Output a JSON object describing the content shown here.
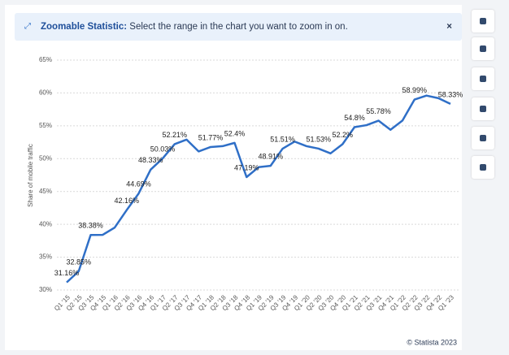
{
  "banner": {
    "title": "Zoomable Statistic:",
    "text": "Select the range in the chart you want to zoom in on.",
    "close": "×"
  },
  "footer": "© Statista 2023",
  "chart_data": {
    "type": "line",
    "y_label": "Share of mobile traffic",
    "color": "#2f6fc7",
    "grid": true,
    "categories": [
      "Q1 '15",
      "Q2 '15",
      "Q3 '15",
      "Q4 '15",
      "Q1 '16",
      "Q2 '16",
      "Q3 '16",
      "Q4 '16",
      "Q1 '17",
      "Q2 '17",
      "Q3 '17",
      "Q4 '17",
      "Q1 '18",
      "Q2 '18",
      "Q3 '18",
      "Q4 '18",
      "Q1 '19",
      "Q2 '19",
      "Q3 '19",
      "Q4 '19",
      "Q1 '20",
      "Q2 '20",
      "Q3 '20",
      "Q4 '20",
      "Q1 '21",
      "Q2 '21",
      "Q3 '21",
      "Q4 '21",
      "Q1 '22",
      "Q2 '22",
      "Q3 '22",
      "Q4 '22",
      "Q1 '23"
    ],
    "values": [
      31.16,
      32.85,
      38.38,
      38.4,
      39.5,
      42.16,
      44.69,
      48.33,
      50.03,
      52.21,
      52.9,
      51.1,
      51.77,
      51.9,
      52.4,
      47.19,
      48.7,
      48.91,
      51.51,
      52.6,
      51.9,
      51.53,
      50.8,
      52.2,
      54.8,
      55.1,
      55.78,
      54.4,
      55.8,
      58.99,
      59.6,
      59.2,
      58.33
    ],
    "value_labels": [
      "31.16%",
      "32.85%",
      "38.38%",
      null,
      null,
      "42.16%",
      "44.69%",
      "48.33%",
      "50.03%",
      "52.21%",
      null,
      null,
      "51.77%",
      null,
      "52.4%",
      "47.19%",
      null,
      "48.91%",
      "51.51%",
      null,
      null,
      "51.53%",
      null,
      "52.2%",
      "54.8%",
      null,
      "55.78%",
      null,
      null,
      "58.99%",
      null,
      null,
      "58.33%"
    ],
    "ylim": [
      30,
      65
    ],
    "yticks": [
      {
        "value": 30,
        "label": "30%"
      },
      {
        "value": 35,
        "label": "35%"
      },
      {
        "value": 40,
        "label": "40%"
      },
      {
        "value": 45,
        "label": "45%"
      },
      {
        "value": 50,
        "label": "50%"
      },
      {
        "value": 55,
        "label": "55%"
      },
      {
        "value": 60,
        "label": "60%"
      },
      {
        "value": 65,
        "label": "65%"
      }
    ]
  }
}
